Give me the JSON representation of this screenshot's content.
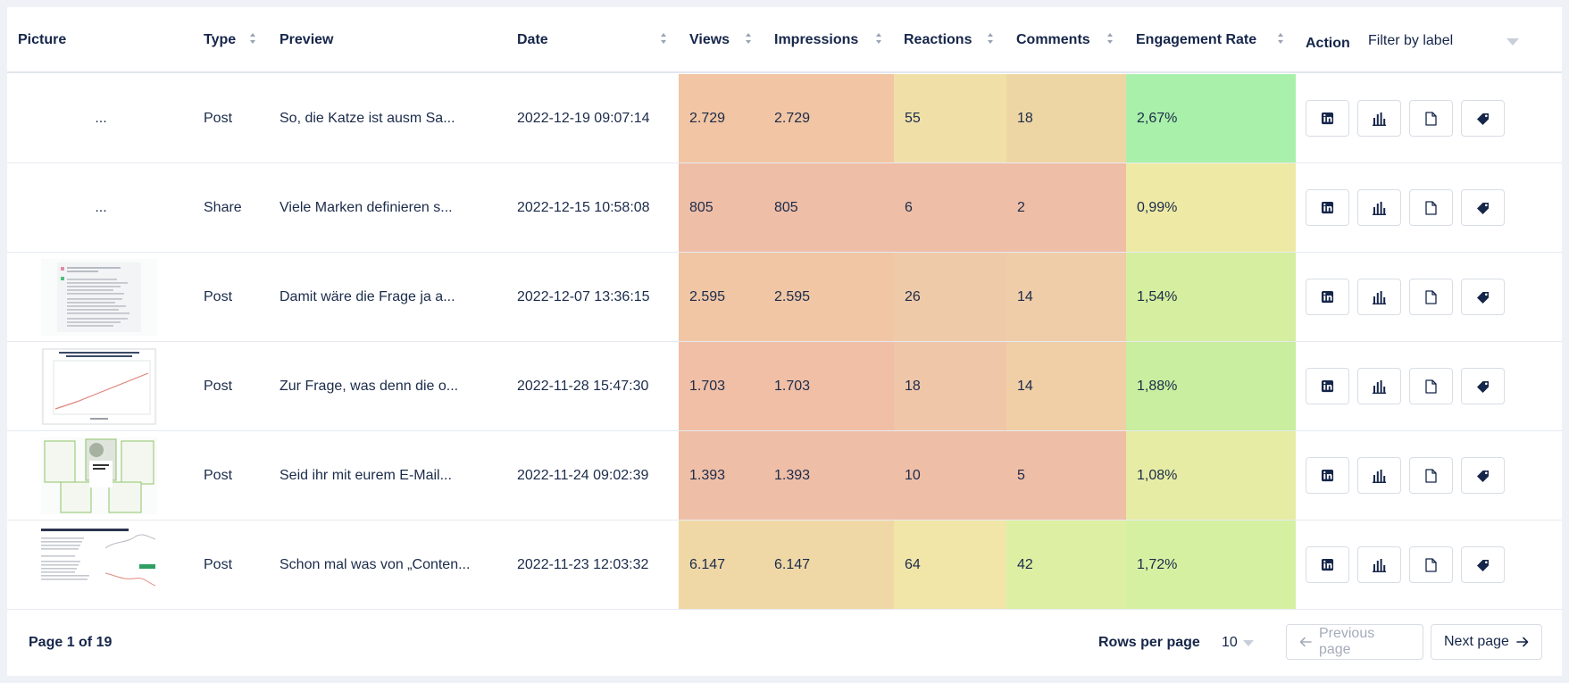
{
  "columns": {
    "picture": "Picture",
    "type": "Type",
    "preview": "Preview",
    "date": "Date",
    "views": "Views",
    "impressions": "Impressions",
    "reactions": "Reactions",
    "comments": "Comments",
    "engagement_rate": "Engagement Rate",
    "action": "Action"
  },
  "filter": {
    "placeholder": "Filter by label"
  },
  "rows": [
    {
      "picture": "...",
      "type": "Post",
      "preview": "So, die Katze ist ausm Sa...",
      "date": "2022-12-19 09:07:14",
      "views": "2.729",
      "impressions": "2.729",
      "reactions": "55",
      "comments": "18",
      "engagement_rate": "2,67%"
    },
    {
      "picture": "...",
      "type": "Share",
      "preview": "Viele Marken definieren s...",
      "date": "2022-12-15 10:58:08",
      "views": "805",
      "impressions": "805",
      "reactions": "6",
      "comments": "2",
      "engagement_rate": "0,99%"
    },
    {
      "picture": "",
      "type": "Post",
      "preview": "Damit wäre die Frage ja a...",
      "date": "2022-12-07 13:36:15",
      "views": "2.595",
      "impressions": "2.595",
      "reactions": "26",
      "comments": "14",
      "engagement_rate": "1,54%"
    },
    {
      "picture": "",
      "type": "Post",
      "preview": "Zur Frage, was denn die o...",
      "date": "2022-11-28 15:47:30",
      "views": "1.703",
      "impressions": "1.703",
      "reactions": "18",
      "comments": "14",
      "engagement_rate": "1,88%"
    },
    {
      "picture": "",
      "type": "Post",
      "preview": "Seid ihr mit eurem E-Mail...",
      "date": "2022-11-24 09:02:39",
      "views": "1.393",
      "impressions": "1.393",
      "reactions": "10",
      "comments": "5",
      "engagement_rate": "1,08%"
    },
    {
      "picture": "",
      "type": "Post",
      "preview": "Schon mal was von „Conten...",
      "date": "2022-11-23 12:03:32",
      "views": "6.147",
      "impressions": "6.147",
      "reactions": "64",
      "comments": "42",
      "engagement_rate": "1,72%"
    }
  ],
  "heatmap_colors": [
    {
      "views": "#f2c5a4",
      "reactions": "#f0e0a8",
      "comments": "#eed6a4",
      "engagement_rate": "#a9f0aa"
    },
    {
      "views": "#efbea7",
      "reactions": "#efbea7",
      "comments": "#efbea7",
      "engagement_rate": "#eeeaa6"
    },
    {
      "views": "#f0c6a5",
      "reactions": "#efcaa8",
      "comments": "#efcda8",
      "engagement_rate": "#d6ee9f"
    },
    {
      "views": "#f0bfa5",
      "reactions": "#f0c6a8",
      "comments": "#f0cea6",
      "engagement_rate": "#c9ee9f"
    },
    {
      "views": "#efbea7",
      "reactions": "#efbea7",
      "comments": "#efbea7",
      "engagement_rate": "#e6eca4"
    },
    {
      "views": "#f0d8a6",
      "reactions": "#f1e6a8",
      "comments": "#ddefa2",
      "engagement_rate": "#d6f0a2"
    }
  ],
  "row_actions": [
    "linkedin-icon",
    "bar-chart-icon",
    "document-icon",
    "tag-icon"
  ],
  "footer": {
    "page_info": "Page 1 of 19",
    "rows_per_page_label": "Rows per page",
    "rows_per_page_value": "10",
    "prev_label": "Previous page",
    "next_label": "Next page"
  }
}
